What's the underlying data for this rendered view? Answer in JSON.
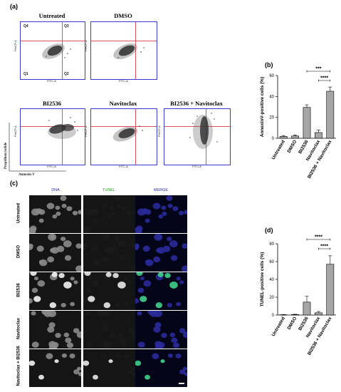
{
  "labels": {
    "a": "(a)",
    "b": "(b)",
    "c": "(c)",
    "d": "(d)"
  },
  "flow": {
    "plots": [
      {
        "title": "Untreated",
        "quadrants": [
          "Q4",
          "Q3",
          "Q1",
          "Q2"
        ]
      },
      {
        "title": "DMSO"
      },
      {
        "title": "BI2536"
      },
      {
        "title": "Navitoclax"
      },
      {
        "title": "BI2536 + Navitoclax"
      }
    ],
    "x_axis": "FITC-A",
    "y_axis": "PerCP-A",
    "outer_y": "Propidium iodide",
    "outer_x": "Annexin V"
  },
  "micro": {
    "headers": [
      "DNA",
      "TUNEL",
      "MERGE"
    ],
    "header_colors": [
      "#2a2ab8",
      "#2a9a2a",
      "#2a2ab8"
    ],
    "rows": [
      "Untreated",
      "DMSO",
      "BI2536",
      "Navitoclax",
      "Navitoclax + BI2536"
    ]
  },
  "chart_data": [
    {
      "type": "bar",
      "panel": "(b)",
      "categories": [
        "Untreated",
        "DMSO",
        "BI2536",
        "Navitoclax",
        "BI2536 + Navitoclax"
      ],
      "values": [
        1.8,
        2.2,
        29.5,
        5.5,
        45
      ],
      "errors": [
        0.8,
        1.0,
        2.5,
        2.5,
        4.0
      ],
      "ylabel": "AnnexinV-positive cells (%)",
      "ylim": [
        0,
        60
      ],
      "yticks": [
        0,
        20,
        40,
        60
      ],
      "significance": [
        {
          "from": 2,
          "to": 4,
          "label": "***"
        },
        {
          "from": 3,
          "to": 4,
          "label": "****"
        }
      ]
    },
    {
      "type": "bar",
      "panel": "(d)",
      "categories": [
        "Untreated",
        "DMSO",
        "BI2536",
        "Navitoclax",
        "BI2536 + Navitoclax"
      ],
      "values": [
        0.3,
        0.5,
        14.5,
        2.5,
        57
      ],
      "errors": [
        0.3,
        0.4,
        6.5,
        1.5,
        9.5
      ],
      "ylabel": "TUNEL-positive cells (%)",
      "ylim": [
        0,
        80
      ],
      "yticks": [
        0,
        20,
        40,
        60,
        80
      ],
      "significance": [
        {
          "from": 2,
          "to": 4,
          "label": "****"
        },
        {
          "from": 3,
          "to": 4,
          "label": "****"
        }
      ]
    }
  ]
}
